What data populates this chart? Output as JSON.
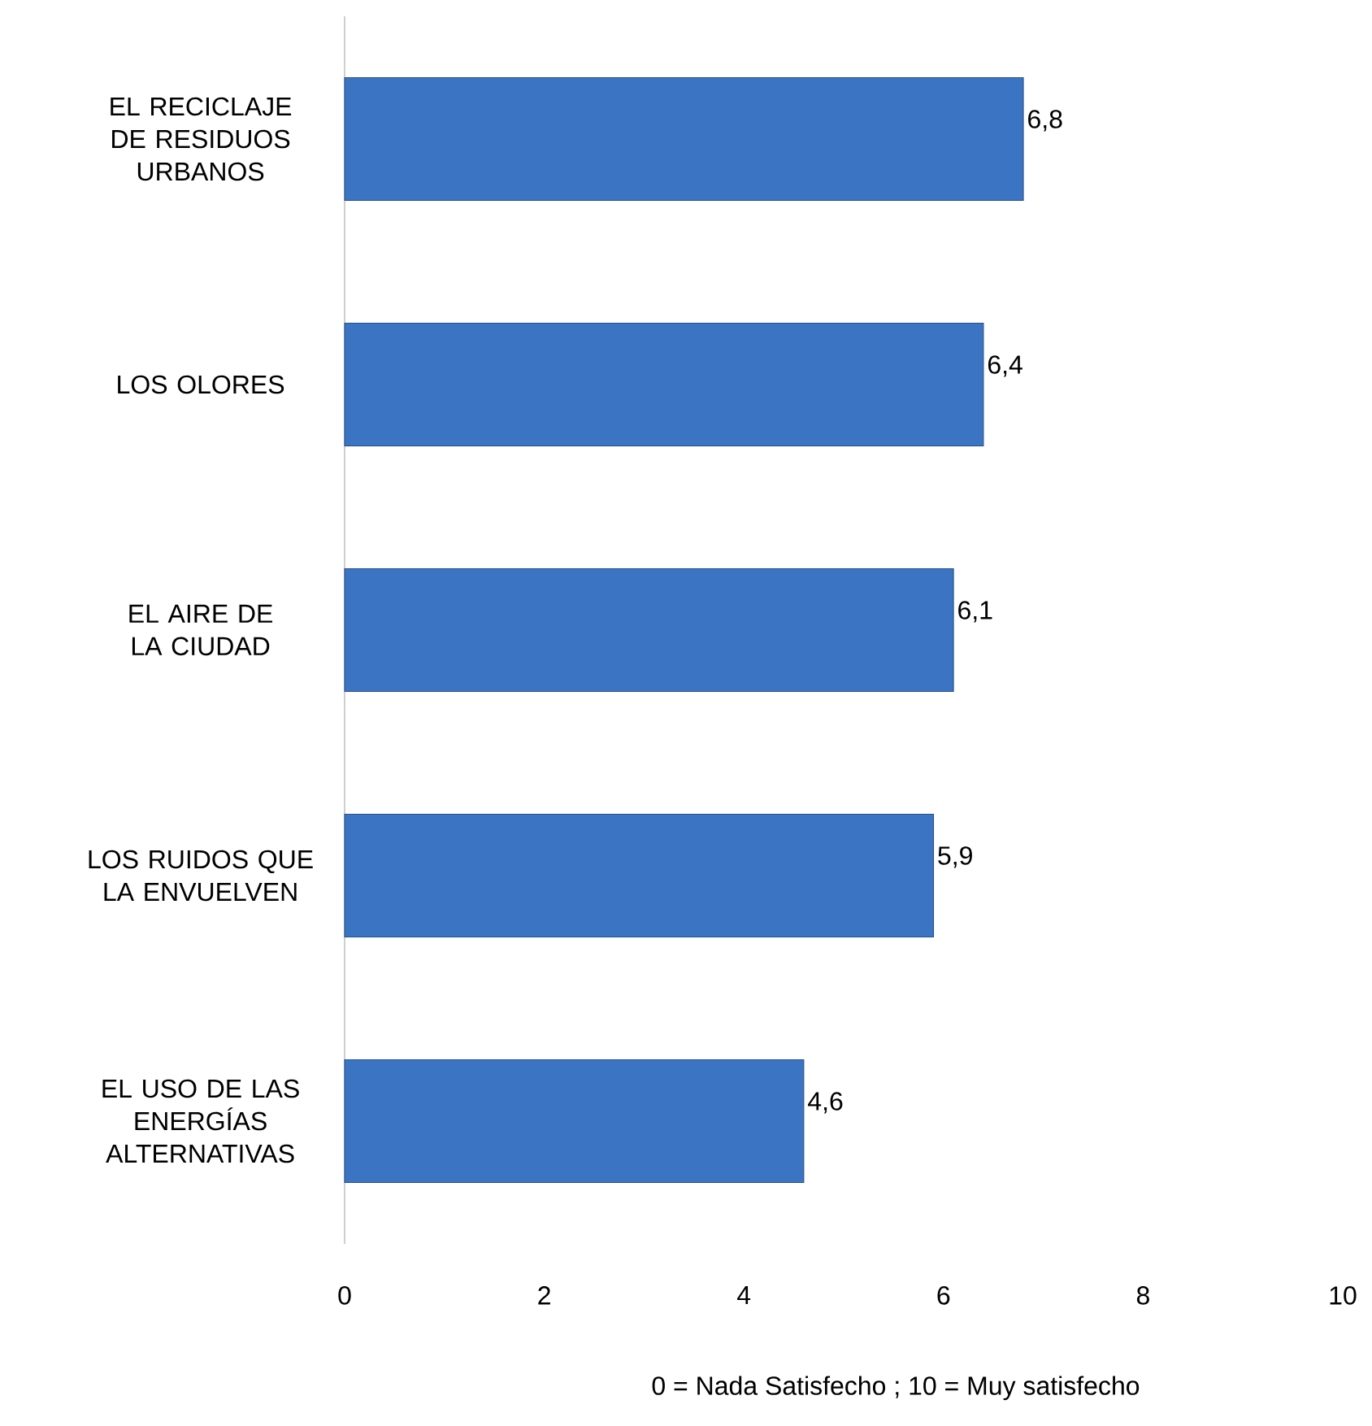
{
  "chart_data": {
    "type": "bar",
    "orientation": "horizontal",
    "categories": [
      "EL RECICLAJE DE RESIDUOS URBANOS",
      "LOS OLORES",
      "EL AIRE DE LA CIUDAD",
      "LOS RUIDOS QUE LA ENVUELVEN",
      "EL USO DE LAS ENERGÍAS ALTERNATIVAS"
    ],
    "values": [
      6.8,
      6.4,
      6.1,
      5.9,
      4.6
    ],
    "value_labels": [
      "6,8",
      "6,4",
      "6,1",
      "5,9",
      "4,6"
    ],
    "color": "#3b74c2",
    "xlim": [
      0,
      10
    ],
    "xticks": [
      0,
      2,
      4,
      6,
      8,
      10
    ],
    "xlabel": "0 = Nada Satisfecho ; 10 = Muy satisfecho",
    "grid": false
  }
}
